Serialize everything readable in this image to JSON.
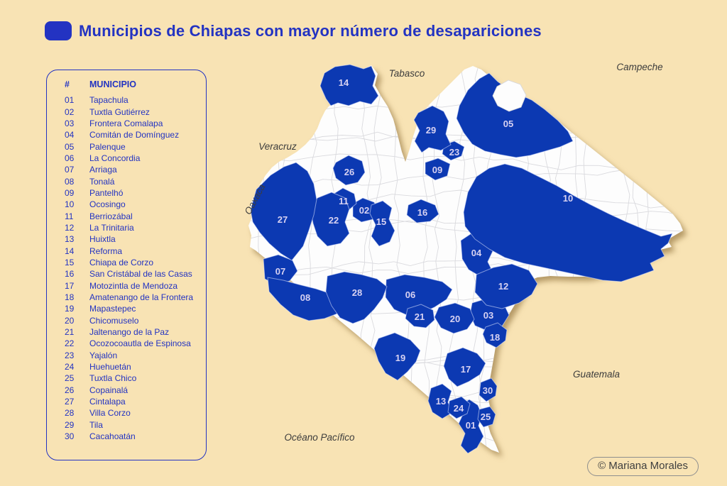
{
  "title": {
    "icon": "rounded-square-icon",
    "text": "Municipios de Chiapas con mayor número de desapariciones"
  },
  "legend": {
    "header": {
      "num": "#",
      "name": "MUNICIPIO"
    },
    "items": [
      {
        "num": "01",
        "name": "Tapachula"
      },
      {
        "num": "02",
        "name": "Tuxtla Gutiérrez"
      },
      {
        "num": "03",
        "name": "Frontera Comalapa"
      },
      {
        "num": "04",
        "name": "Comitán de Domínguez"
      },
      {
        "num": "05",
        "name": "Palenque"
      },
      {
        "num": "06",
        "name": "La Concordia"
      },
      {
        "num": "07",
        "name": "Arriaga"
      },
      {
        "num": "08",
        "name": "Tonalá"
      },
      {
        "num": "09",
        "name": "Pantelhó"
      },
      {
        "num": "10",
        "name": "Ocosingo"
      },
      {
        "num": "11",
        "name": "Berriozábal"
      },
      {
        "num": "12",
        "name": "La Trinitaria"
      },
      {
        "num": "13",
        "name": "Huixtla"
      },
      {
        "num": "14",
        "name": "Reforma"
      },
      {
        "num": "15",
        "name": "Chiapa de Corzo"
      },
      {
        "num": "16",
        "name": "San Cristábal de las Casas"
      },
      {
        "num": "17",
        "name": "Motozintla de Mendoza"
      },
      {
        "num": "18",
        "name": "Amatenango de la Frontera"
      },
      {
        "num": "19",
        "name": "Mapastepec"
      },
      {
        "num": "20",
        "name": "Chicomuselo"
      },
      {
        "num": "21",
        "name": "Jaltenango de la Paz"
      },
      {
        "num": "22",
        "name": "Ocozocoautla de Espinosa"
      },
      {
        "num": "23",
        "name": "Yajalón"
      },
      {
        "num": "24",
        "name": "Huehuetán"
      },
      {
        "num": "25",
        "name": "Tuxtla Chico"
      },
      {
        "num": "26",
        "name": "Copainalá"
      },
      {
        "num": "27",
        "name": "Cintalapa"
      },
      {
        "num": "28",
        "name": "Villa Corzo"
      },
      {
        "num": "29",
        "name": "Tila"
      },
      {
        "num": "30",
        "name": "Cacahoatán"
      }
    ]
  },
  "map": {
    "region_labels": [
      "01",
      "02",
      "03",
      "04",
      "05",
      "06",
      "07",
      "08",
      "09",
      "10",
      "11",
      "12",
      "13",
      "14",
      "15",
      "16",
      "17",
      "18",
      "19",
      "20",
      "21",
      "22",
      "23",
      "24",
      "25",
      "26",
      "27",
      "28",
      "29",
      "30"
    ],
    "geo_labels": [
      "Tabasco",
      "Campeche",
      "Veracruz",
      "Oaxaca",
      "Guatemala",
      "Océano Pacífico"
    ],
    "credit": "© Mariana Morales"
  },
  "colors": {
    "background": "#F8E3B4",
    "accent_blue": "#2333C2",
    "map_blue": "#0C39B2",
    "map_label": "#D8D2F2",
    "state_fill": "#FDFDFD",
    "geo_label": "#3C3C3C"
  }
}
